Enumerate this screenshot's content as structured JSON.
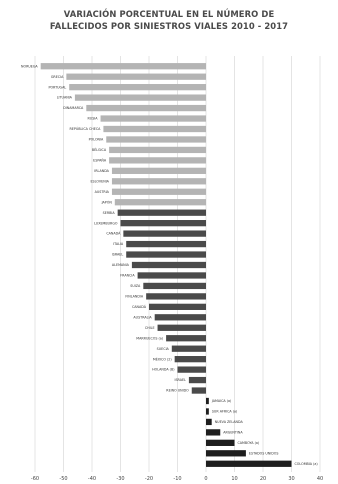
{
  "chart_data": {
    "type": "bar",
    "orientation": "horizontal",
    "title_line1": "VARIACIÓN PORCENTUAL EN EL NÚMERO  DE",
    "title_line2": "FALLECIDOS POR SINIESTROS VIALES 2010 - 2017",
    "xlim": [
      -60,
      40
    ],
    "x_ticks": [
      -60,
      -50,
      -40,
      -30,
      -20,
      -10,
      0,
      10,
      20,
      30,
      40
    ],
    "grid": true,
    "legend": "none",
    "categories": [
      "NORUEGA",
      "GRECIA",
      "PORTUGAL",
      "LITUANIA",
      "DINAMARCA",
      "RUSIA",
      "REPÚBLICA CHECA",
      "POLONIA",
      "BÉLGICA",
      "ESPAÑA",
      "IRLANDA",
      "ESLOVENIA",
      "AUSTRIA",
      "JAPÓN",
      "SERBIA",
      "LUXEMBURGO",
      "CANADÁ",
      "ITALIA",
      "ISRAEL",
      "ALEMANIA",
      "FRANCIA",
      "SUIZA",
      "FINLANDIA",
      "CANADÁ",
      "AUSTRALIA",
      "CHILE",
      "MARRUECOS (a)",
      "SUECIA",
      "MÉXICO (2)",
      "HOLANDA (B)",
      "ISRAEL",
      "REINO UNIDO",
      "JAMAICA (a)",
      "SUR AFRICA (a)",
      "NUEVA ZELANDA",
      "ARGENTINA",
      "CAMBOYA (a)",
      "ESTADOS UNIDOS",
      "COLOMBIA (a)"
    ],
    "values": [
      -58,
      -49,
      -48,
      -46,
      -42,
      -37,
      -36,
      -35,
      -34,
      -34,
      -33,
      -33,
      -33,
      -32,
      -31,
      -30,
      -29,
      -28,
      -28,
      -26,
      -24,
      -22,
      -21,
      -20,
      -18,
      -17,
      -14,
      -12,
      -11,
      -10,
      -6,
      -5,
      1,
      1,
      2,
      5,
      10,
      14,
      30
    ],
    "colors": {
      "bar_negative_light": "#b4b4b4",
      "bar_negative_dark": "#4a4a4a",
      "bar_positive": "#1e1e1e",
      "grid": "#d2d2d2"
    }
  }
}
